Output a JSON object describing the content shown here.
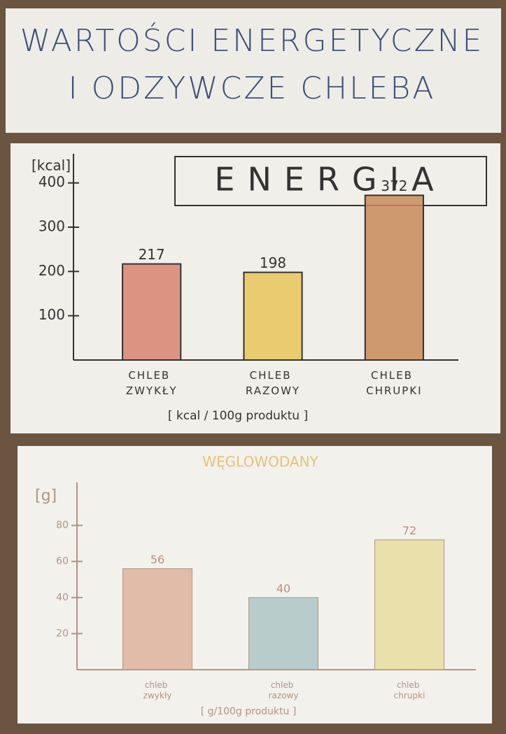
{
  "header": {
    "title": "WARTOŚCI ENERGETYCZNE I ODZYWCZE CHLEBA"
  },
  "chart_data": [
    {
      "type": "bar",
      "title": "ENERGIA",
      "y_label": "[kcal]",
      "x_label": "[ kcal / 100g produktu ]",
      "categories": [
        "CHLEB ZWYKŁY",
        "CHLEB RAZOWY",
        "CHLEB CHRUPKI"
      ],
      "values": [
        217,
        198,
        372
      ],
      "colors": [
        "#d9826e",
        "#e9c55a",
        "#c98a5a"
      ],
      "ylim": [
        0,
        450
      ],
      "yticks": [
        100,
        200,
        300,
        400
      ]
    },
    {
      "type": "bar",
      "title": "WĘGLOWODANY",
      "y_label": "[g]",
      "x_label": "[ g/100g produktu ]",
      "categories": [
        "chleb zwykły",
        "chleb razowy",
        "chleb chrupki"
      ],
      "values": [
        56,
        40,
        72
      ],
      "colors": [
        "#dcaf98",
        "#a9c3c4",
        "#e6dc9c"
      ],
      "ylim": [
        0,
        100
      ],
      "yticks": [
        20,
        40,
        60,
        80
      ]
    }
  ]
}
